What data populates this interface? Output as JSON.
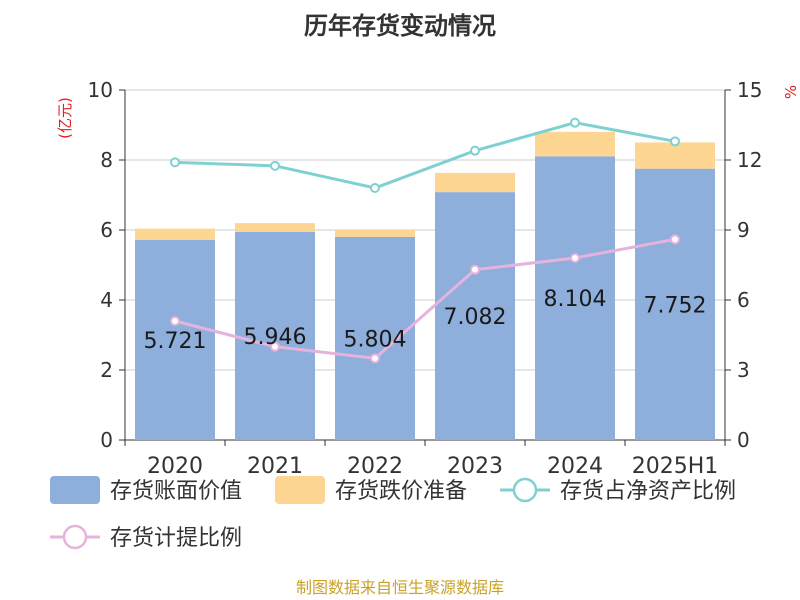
{
  "chart_data": {
    "type": "bar",
    "title": "历年存货变动情况",
    "categories": [
      "2020",
      "2021",
      "2022",
      "2023",
      "2024",
      "2025H1"
    ],
    "y_left": {
      "unit_label": "(亿元)",
      "ylim": [
        0,
        10
      ],
      "ticks": [
        0,
        2,
        4,
        6,
        8,
        10
      ]
    },
    "y_right": {
      "unit_label": "%",
      "ylim": [
        0,
        15
      ],
      "ticks": [
        0,
        3,
        6,
        9,
        12,
        15
      ]
    },
    "grid": true,
    "legend_position": "bottom",
    "series": [
      {
        "name": "存货账面价值",
        "type": "bar",
        "stack": "inv",
        "axis": "left",
        "color": "#8eaedb",
        "values": [
          5.721,
          5.946,
          5.804,
          7.082,
          8.104,
          7.752
        ]
      },
      {
        "name": "存货跌价准备",
        "type": "bar",
        "stack": "inv",
        "axis": "left",
        "color": "#fcd692",
        "values": [
          0.32,
          0.25,
          0.2,
          0.55,
          0.7,
          0.75
        ]
      },
      {
        "name": "存货占净资产比例",
        "type": "line",
        "axis": "right",
        "color": "#7fd1d1",
        "values": [
          11.9,
          11.75,
          10.8,
          12.4,
          13.6,
          12.8
        ]
      },
      {
        "name": "存货计提比例",
        "type": "line",
        "axis": "right",
        "color": "#e5b3db",
        "values": [
          5.1,
          4.0,
          3.5,
          7.3,
          7.8,
          8.6
        ]
      }
    ],
    "data_labels": [
      "5.721",
      "5.946",
      "5.804",
      "7.082",
      "8.104",
      "7.752"
    ]
  },
  "source": "制图数据来自恒生聚源数据库"
}
